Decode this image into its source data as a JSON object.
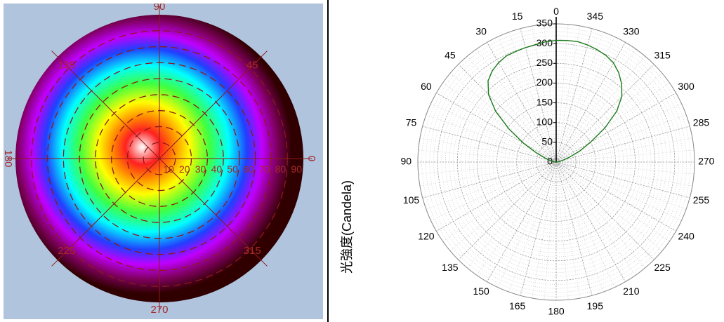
{
  "chart_data": [
    {
      "type": "heatmap",
      "projection": "polar",
      "angle_labels": [
        "0",
        "45",
        "90",
        "135",
        "180",
        "225",
        "270",
        "315"
      ],
      "radial_labels": [
        "10",
        "20",
        "30",
        "40",
        "50",
        "60",
        "70",
        "80",
        "90"
      ],
      "radial_max": 90,
      "grid": true,
      "colormap_stops": [
        {
          "t": 0.0,
          "color": "#ffffff"
        },
        {
          "t": 0.12,
          "color": "#ff2020"
        },
        {
          "t": 0.22,
          "color": "#ff9000"
        },
        {
          "t": 0.32,
          "color": "#ffff00"
        },
        {
          "t": 0.45,
          "color": "#40ff40"
        },
        {
          "t": 0.58,
          "color": "#00ffff"
        },
        {
          "t": 0.7,
          "color": "#2040ff"
        },
        {
          "t": 0.8,
          "color": "#c000ff"
        },
        {
          "t": 0.9,
          "color": "#800060"
        },
        {
          "t": 1.0,
          "color": "#300000"
        }
      ],
      "grid_color": "#8b1a1a",
      "label_color": "#a52a2a"
    },
    {
      "type": "line",
      "projection": "polar",
      "ylabel": "光強度(Candela)",
      "angle_ticks": [
        0,
        15,
        30,
        45,
        60,
        75,
        90,
        105,
        120,
        135,
        150,
        165,
        180,
        195,
        210,
        225,
        240,
        255,
        270,
        285,
        300,
        315,
        330,
        345
      ],
      "angle_direction": "counterclockwise",
      "zero_location": "top",
      "r_ticks": [
        0,
        50,
        100,
        150,
        200,
        250,
        300,
        350
      ],
      "rlim": [
        0,
        350
      ],
      "grid": true,
      "series": [
        {
          "color": "#1a7a1a",
          "theta": [
            0,
            5,
            10,
            15,
            20,
            25,
            30,
            35,
            40,
            45,
            50,
            55,
            60,
            65,
            70,
            75,
            80,
            85,
            90,
            270,
            275,
            280,
            285,
            290,
            295,
            300,
            305,
            310,
            315,
            320,
            325,
            330,
            335,
            340,
            345,
            350,
            355,
            360
          ],
          "r": [
            308,
            306,
            302,
            300,
            298,
            297,
            291,
            282,
            268,
            242,
            200,
            145,
            95,
            55,
            30,
            15,
            7,
            3,
            0,
            0,
            3,
            8,
            18,
            35,
            65,
            100,
            150,
            200,
            235,
            258,
            276,
            290,
            298,
            303,
            307,
            310,
            309,
            308
          ]
        }
      ]
    }
  ]
}
